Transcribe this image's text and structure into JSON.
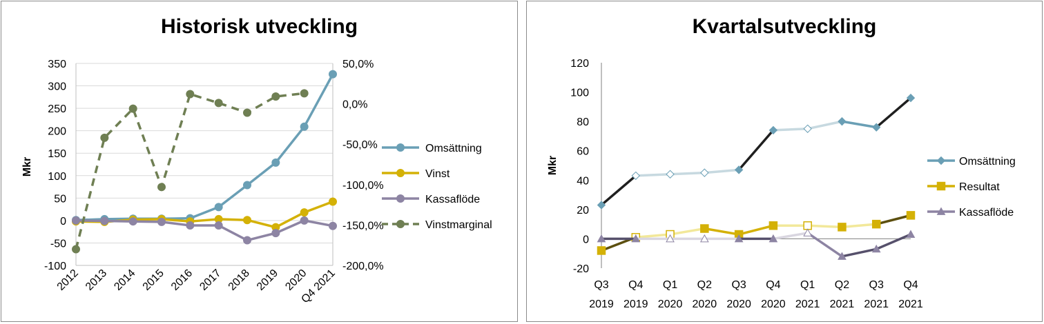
{
  "chart_data": [
    {
      "type": "line",
      "title": "Historisk utveckling",
      "ylabel": "Mkr",
      "categories": [
        "2012",
        "2013",
        "2014",
        "2015",
        "2016",
        "2017",
        "2018",
        "2019",
        "2020",
        "Q4 2021"
      ],
      "ylim": [
        -100,
        350
      ],
      "yticks": [
        "350",
        "300",
        "250",
        "200",
        "150",
        "100",
        "50",
        "0",
        "-50",
        "-100"
      ],
      "y2lim": [
        -200,
        50
      ],
      "y2ticks": [
        "50,0%",
        "0,0%",
        "-50,0%",
        "-100,0%",
        "-150,0%",
        "-200,0%"
      ],
      "legend_position": "right",
      "series": [
        {
          "name": "Omsättning",
          "axis": "left",
          "color": "#6a9fb5",
          "marker": "circle",
          "dash": false,
          "values": [
            1,
            3,
            4,
            4,
            5,
            30,
            79,
            129,
            209,
            326
          ]
        },
        {
          "name": "Vinst",
          "axis": "left",
          "color": "#d4b106",
          "marker": "circle",
          "dash": false,
          "values": [
            -2,
            -3,
            2,
            3,
            -2,
            3,
            1,
            -15,
            18,
            42
          ]
        },
        {
          "name": "Kassaflöde",
          "axis": "left",
          "color": "#8d84a3",
          "marker": "circle",
          "dash": false,
          "values": [
            0,
            -1,
            -2,
            -3,
            -11,
            -11,
            -44,
            -28,
            0,
            -12
          ]
        },
        {
          "name": "Vinstmarginal",
          "axis": "right",
          "color": "#6f7f53",
          "marker": "circle",
          "dash": true,
          "values": [
            -180,
            -42,
            -6,
            -103,
            12,
            1,
            -11,
            9,
            13,
            null
          ]
        }
      ]
    },
    {
      "type": "line",
      "title": "Kvartalsutveckling",
      "ylabel": "Mkr",
      "categories": [
        [
          "Q3",
          "2019"
        ],
        [
          "Q4",
          "2019"
        ],
        [
          "Q1",
          "2020"
        ],
        [
          "Q2",
          "2020"
        ],
        [
          "Q3",
          "2020"
        ],
        [
          "Q4",
          "2020"
        ],
        [
          "Q1",
          "2021"
        ],
        [
          "Q2",
          "2021"
        ],
        [
          "Q3",
          "2021"
        ],
        [
          "Q4",
          "2021"
        ]
      ],
      "ylim": [
        -20,
        120
      ],
      "yticks": [
        "120",
        "100",
        "80",
        "60",
        "40",
        "20",
        "0",
        "-20"
      ],
      "legend_position": "right",
      "series": [
        {
          "name": "Omsättning",
          "color": "#6a9fb5",
          "light": "#c7d9e0",
          "dark": "#1f1f1f",
          "marker": "diamond",
          "values": [
            23,
            43,
            44,
            45,
            47,
            74,
            75,
            80,
            76,
            96
          ]
        },
        {
          "name": "Resultat",
          "color": "#d4b106",
          "light": "#f2e89a",
          "dark": "#5c4f0f",
          "marker": "square",
          "values": [
            -8,
            1,
            3,
            7,
            3,
            9,
            9,
            8,
            10,
            16
          ]
        },
        {
          "name": "Kassaflöde",
          "color": "#8d84a3",
          "light": "#d9d6e0",
          "dark": "#56506b",
          "marker": "triangle",
          "values": [
            0,
            0,
            0,
            0,
            0,
            0,
            4,
            -12,
            -7,
            3
          ]
        }
      ]
    }
  ]
}
